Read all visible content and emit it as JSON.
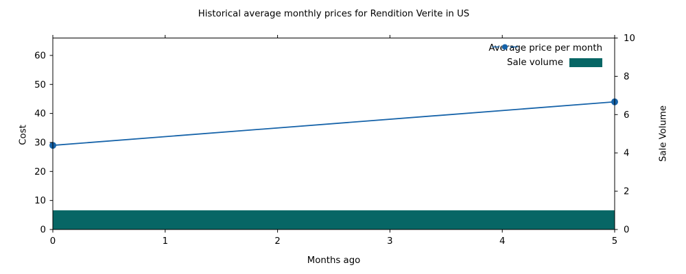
{
  "chart_data": {
    "type": "line+bar",
    "title": "Historical average monthly prices for Rendition Verite in US",
    "xlabel": "Months ago",
    "ylabel_left": "Cost",
    "ylabel_right": "Sale Volume",
    "xlim": [
      0,
      5
    ],
    "ylim_left": [
      0,
      66
    ],
    "ylim_right": [
      0,
      10
    ],
    "x_ticks": [
      0,
      1,
      2,
      3,
      4,
      5
    ],
    "y_ticks_left": [
      0,
      10,
      20,
      30,
      40,
      50,
      60
    ],
    "y_ticks_right": [
      0,
      2,
      4,
      6,
      8,
      10
    ],
    "grid": false,
    "legend_position": "upper right",
    "legend_frame": false,
    "series": [
      {
        "name": "Average price per month",
        "type": "line",
        "axis": "left",
        "x": [
          0,
          5
        ],
        "y": [
          29,
          44
        ],
        "color": "#1663a9",
        "marker": "circle",
        "marker_size": 5,
        "legend_sample_style": "dash-dot-dash"
      },
      {
        "name": "Sale volume",
        "type": "bar",
        "axis": "right",
        "x": [
          0,
          1,
          2,
          3,
          4,
          5
        ],
        "y": [
          1,
          1,
          1,
          1,
          1,
          1
        ],
        "color": "#076665",
        "bar_span": "full-width"
      }
    ],
    "colors": {
      "line": "#1663a9",
      "bar": "#076665",
      "axis": "#000000",
      "text": "#000000",
      "background": "#ffffff"
    }
  }
}
